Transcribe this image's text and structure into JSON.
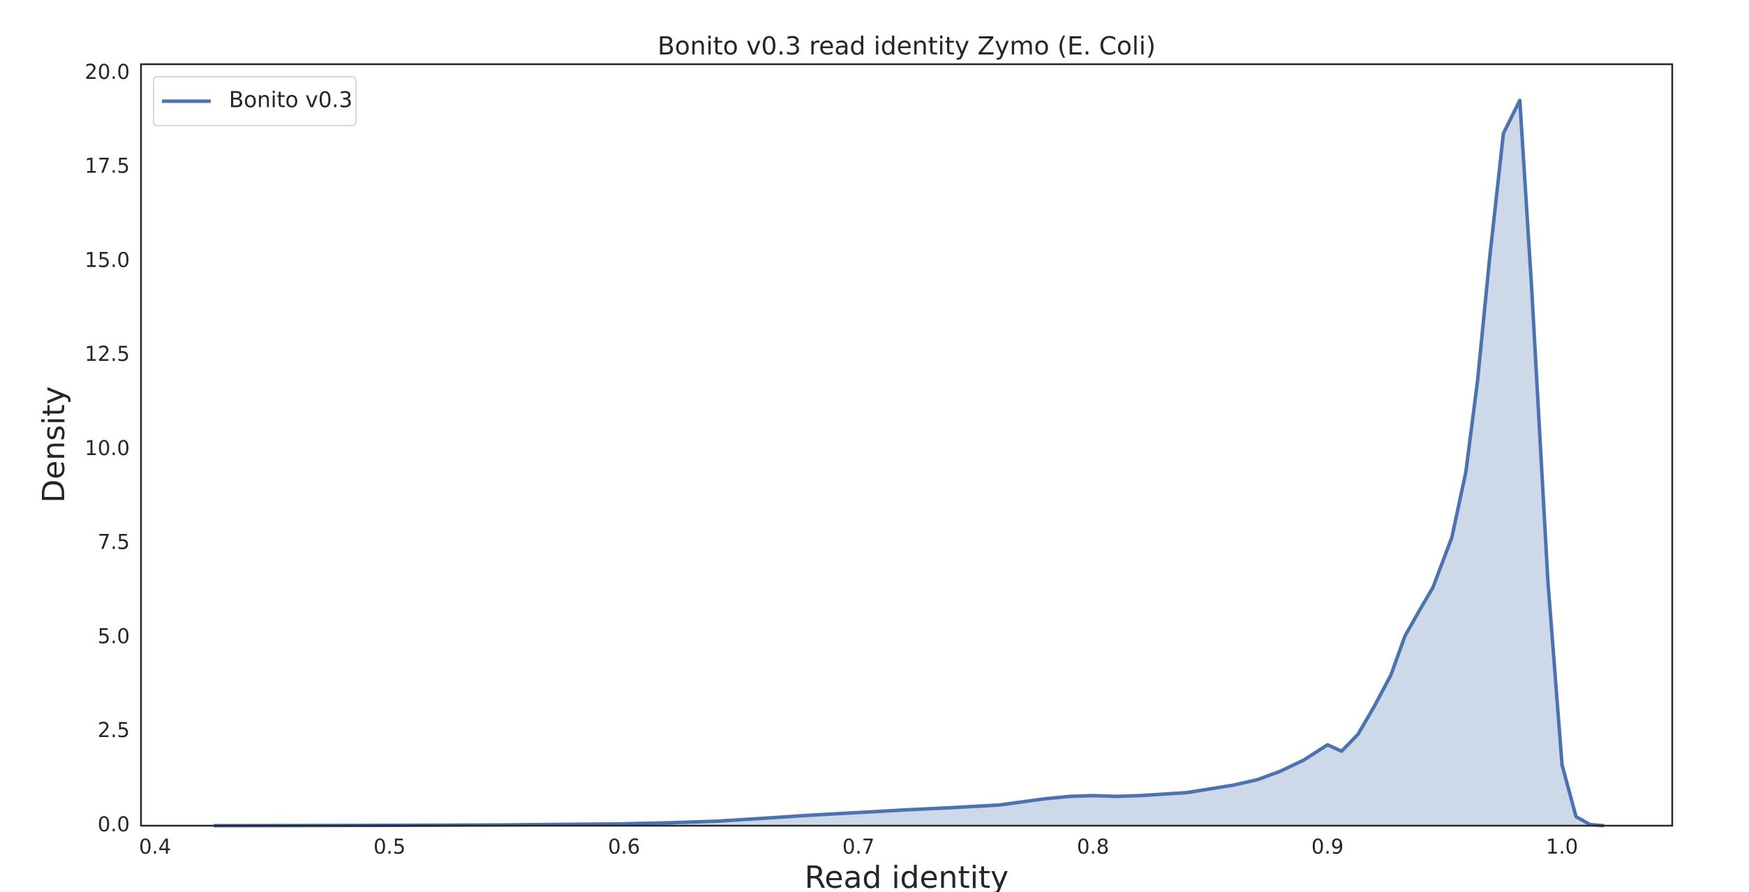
{
  "chart_data": {
    "type": "line",
    "title": "Bonito v0.3 read identity Zymo (E. Coli)",
    "x_label": "Read identity",
    "y_label": "Density",
    "x": [
      0.425,
      0.5,
      0.55,
      0.6,
      0.62,
      0.64,
      0.66,
      0.68,
      0.7,
      0.72,
      0.74,
      0.76,
      0.78,
      0.79,
      0.8,
      0.81,
      0.82,
      0.84,
      0.86,
      0.87,
      0.88,
      0.89,
      0.9,
      0.906,
      0.913,
      0.92,
      0.927,
      0.933,
      0.939,
      0.945,
      0.953,
      0.959,
      0.964,
      0.969,
      0.975,
      0.982,
      0.987,
      0.994,
      1.0,
      1.006,
      1.012,
      1.018
    ],
    "series": [
      {
        "name": "Bonito v0.3",
        "color": "#4c72b0",
        "values": [
          0,
          0.01,
          0.02,
          0.05,
          0.08,
          0.12,
          0.2,
          0.28,
          0.35,
          0.42,
          0.48,
          0.55,
          0.72,
          0.78,
          0.8,
          0.78,
          0.8,
          0.88,
          1.08,
          1.22,
          1.45,
          1.75,
          2.15,
          1.98,
          2.43,
          3.18,
          4.0,
          5.04,
          5.7,
          6.34,
          7.66,
          9.4,
          11.83,
          15.0,
          18.4,
          19.28,
          14.35,
          6.49,
          1.62,
          0.24,
          0.03,
          0
        ]
      }
    ],
    "xlim": [
      0.394,
      1.047
    ],
    "ylim": [
      0,
      20.24
    ],
    "xticks": [
      0.4,
      0.5,
      0.6,
      0.7,
      0.8,
      0.9,
      {
        "value": 1,
        "label": "1.0"
      }
    ],
    "yticks": [
      {
        "value": 0,
        "label": "0.0"
      },
      2.5,
      {
        "value": 5,
        "label": "5.0"
      },
      7.5,
      {
        "value": 10,
        "label": "10.0"
      },
      12.5,
      {
        "value": 15,
        "label": "15.0"
      },
      17.5,
      {
        "value": 20,
        "label": "20.0"
      }
    ],
    "grid": false,
    "legend": "upper left"
  }
}
